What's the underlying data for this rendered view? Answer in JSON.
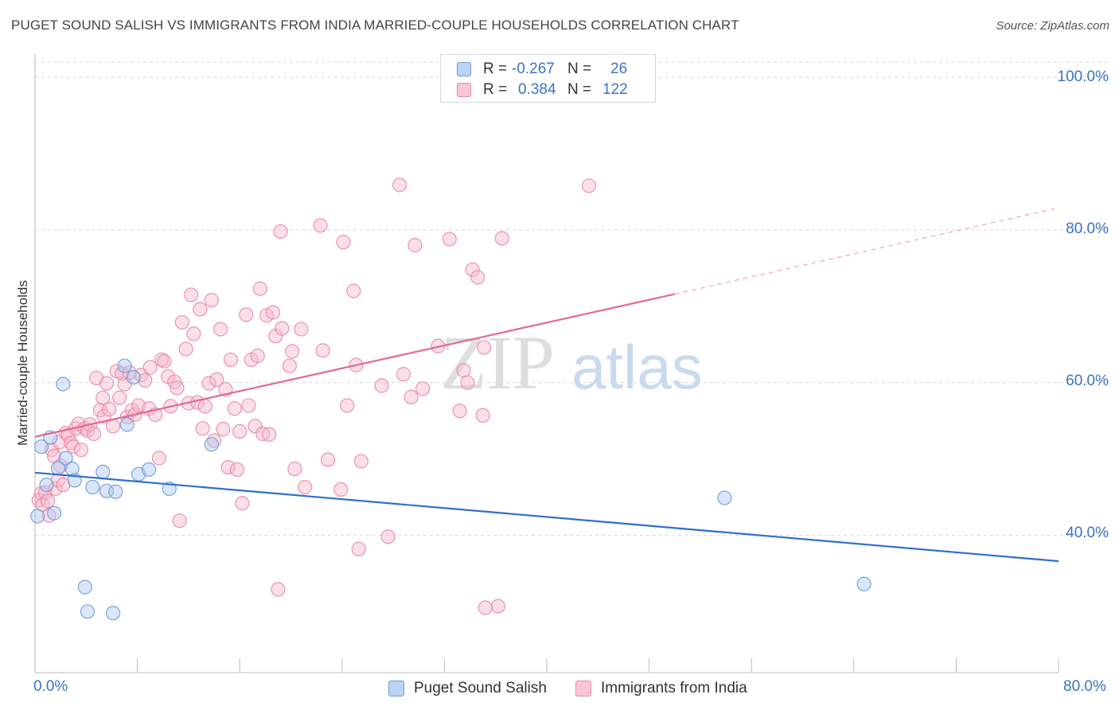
{
  "header": {
    "title": "PUGET SOUND SALISH VS IMMIGRANTS FROM INDIA MARRIED-COUPLE HOUSEHOLDS CORRELATION CHART",
    "source": "Source: ZipAtlas.com"
  },
  "watermark": {
    "zip": "ZIP",
    "atlas": "atlas"
  },
  "legend": {
    "rows": [
      {
        "r_label": "R =",
        "r_value": "-0.267",
        "n_label": "N =",
        "n_value": "26"
      },
      {
        "r_label": "R =",
        "r_value": "0.384",
        "n_label": "N =",
        "n_value": "122"
      }
    ]
  },
  "axes": {
    "xtick_labels": [
      "0.0%",
      "80.0%"
    ],
    "ytick_labels": [
      "100.0%",
      "80.0%",
      "60.0%",
      "40.0%"
    ]
  },
  "colors": {
    "blue_fill": "#aac8ee",
    "blue_stroke": "#6e9bd8",
    "blue_line": "#2e6fcc",
    "pink_fill": "#f5b7c9",
    "pink_stroke": "#e98aa7",
    "pink_line": "#e06a93"
  },
  "chart_data": {
    "type": "scatter",
    "title": "PUGET SOUND SALISH VS IMMIGRANTS FROM INDIA MARRIED-COUPLE HOUSEHOLDS CORRELATION CHART",
    "xlabel": "",
    "ylabel": "Married-couple Households",
    "xlim": [
      0,
      80
    ],
    "ylim": [
      22,
      102
    ],
    "grid": true,
    "legend_placement": "bottom",
    "series": [
      {
        "name": "Puget Sound Salish",
        "r": -0.267,
        "n": 26,
        "trend": {
          "x": [
            0,
            80
          ],
          "y": [
            48.2,
            36.6
          ]
        },
        "points": [
          [
            0.2,
            42.5
          ],
          [
            0.5,
            51.6
          ],
          [
            0.9,
            46.6
          ],
          [
            1.2,
            52.8
          ],
          [
            1.5,
            42.9
          ],
          [
            1.8,
            48.8
          ],
          [
            2.2,
            59.8
          ],
          [
            2.4,
            50.1
          ],
          [
            2.9,
            48.7
          ],
          [
            3.1,
            47.2
          ],
          [
            3.9,
            33.2
          ],
          [
            4.1,
            30.0
          ],
          [
            4.5,
            46.3
          ],
          [
            5.3,
            48.3
          ],
          [
            5.6,
            45.8
          ],
          [
            6.1,
            29.8
          ],
          [
            6.3,
            45.7
          ],
          [
            7.0,
            62.2
          ],
          [
            7.2,
            54.5
          ],
          [
            7.7,
            60.7
          ],
          [
            8.1,
            48.0
          ],
          [
            8.9,
            48.6
          ],
          [
            10.5,
            46.1
          ],
          [
            13.8,
            51.9
          ],
          [
            53.9,
            44.9
          ],
          [
            64.8,
            33.6
          ]
        ]
      },
      {
        "name": "Immigrants from India",
        "r": 0.384,
        "n": 122,
        "trend": {
          "x": [
            0,
            50
          ],
          "y": [
            52.9,
            71.6
          ]
        },
        "trend_extension": {
          "x": [
            50,
            80
          ],
          "y": [
            71.6,
            82.9
          ]
        },
        "points": [
          [
            0.3,
            44.6
          ],
          [
            0.5,
            45.5
          ],
          [
            0.6,
            44.0
          ],
          [
            0.8,
            45.6
          ],
          [
            1.0,
            44.5
          ],
          [
            1.1,
            42.6
          ],
          [
            1.3,
            51.2
          ],
          [
            1.5,
            50.4
          ],
          [
            1.6,
            46.1
          ],
          [
            1.8,
            47.2
          ],
          [
            1.9,
            52.2
          ],
          [
            2.0,
            49.1
          ],
          [
            2.2,
            46.6
          ],
          [
            2.4,
            53.4
          ],
          [
            2.6,
            53.1
          ],
          [
            2.8,
            52.1
          ],
          [
            3.0,
            51.6
          ],
          [
            3.2,
            54.0
          ],
          [
            3.4,
            54.6
          ],
          [
            3.6,
            51.2
          ],
          [
            3.9,
            54.0
          ],
          [
            4.1,
            53.7
          ],
          [
            4.3,
            54.5
          ],
          [
            4.6,
            53.3
          ],
          [
            4.8,
            60.6
          ],
          [
            5.1,
            56.4
          ],
          [
            5.3,
            58.0
          ],
          [
            5.4,
            55.6
          ],
          [
            5.6,
            59.9
          ],
          [
            5.8,
            56.5
          ],
          [
            6.1,
            54.3
          ],
          [
            6.4,
            61.5
          ],
          [
            6.6,
            58.0
          ],
          [
            6.8,
            61.2
          ],
          [
            7.0,
            59.8
          ],
          [
            7.2,
            55.5
          ],
          [
            7.4,
            61.3
          ],
          [
            7.6,
            56.4
          ],
          [
            7.8,
            55.8
          ],
          [
            8.1,
            57.0
          ],
          [
            8.3,
            61.0
          ],
          [
            8.6,
            60.3
          ],
          [
            8.9,
            56.6
          ],
          [
            9.0,
            62.0
          ],
          [
            9.4,
            55.8
          ],
          [
            9.7,
            50.1
          ],
          [
            9.9,
            63.0
          ],
          [
            10.1,
            62.8
          ],
          [
            10.4,
            60.8
          ],
          [
            10.6,
            56.9
          ],
          [
            10.9,
            60.1
          ],
          [
            11.1,
            59.3
          ],
          [
            11.3,
            41.9
          ],
          [
            11.5,
            67.9
          ],
          [
            11.8,
            64.4
          ],
          [
            12.0,
            57.3
          ],
          [
            12.2,
            71.5
          ],
          [
            12.4,
            66.4
          ],
          [
            12.7,
            57.4
          ],
          [
            12.9,
            69.6
          ],
          [
            13.1,
            54.0
          ],
          [
            13.3,
            56.9
          ],
          [
            13.6,
            59.9
          ],
          [
            13.8,
            70.8
          ],
          [
            14.0,
            52.4
          ],
          [
            14.2,
            60.4
          ],
          [
            14.5,
            67.0
          ],
          [
            14.7,
            53.9
          ],
          [
            14.9,
            59.1
          ],
          [
            15.1,
            48.9
          ],
          [
            15.3,
            63.0
          ],
          [
            15.6,
            56.6
          ],
          [
            15.8,
            48.6
          ],
          [
            16.0,
            53.6
          ],
          [
            16.2,
            44.2
          ],
          [
            16.5,
            68.9
          ],
          [
            16.7,
            57.0
          ],
          [
            16.9,
            63.0
          ],
          [
            17.2,
            54.3
          ],
          [
            17.4,
            63.5
          ],
          [
            17.6,
            72.3
          ],
          [
            17.8,
            53.3
          ],
          [
            18.1,
            68.8
          ],
          [
            18.3,
            53.2
          ],
          [
            18.6,
            69.2
          ],
          [
            18.8,
            66.1
          ],
          [
            19.0,
            32.9
          ],
          [
            19.2,
            79.8
          ],
          [
            19.3,
            67.1
          ],
          [
            19.9,
            62.2
          ],
          [
            20.1,
            64.1
          ],
          [
            20.3,
            48.7
          ],
          [
            20.8,
            67.0
          ],
          [
            21.1,
            46.3
          ],
          [
            22.3,
            80.6
          ],
          [
            22.5,
            64.2
          ],
          [
            22.9,
            49.9
          ],
          [
            23.9,
            46.0
          ],
          [
            24.1,
            78.4
          ],
          [
            24.4,
            57.0
          ],
          [
            24.9,
            72.0
          ],
          [
            25.1,
            62.3
          ],
          [
            25.3,
            38.2
          ],
          [
            25.5,
            49.7
          ],
          [
            27.1,
            59.6
          ],
          [
            27.6,
            39.8
          ],
          [
            28.5,
            85.9
          ],
          [
            28.8,
            61.1
          ],
          [
            29.4,
            58.1
          ],
          [
            29.7,
            78.0
          ],
          [
            30.3,
            59.2
          ],
          [
            31.5,
            64.8
          ],
          [
            32.4,
            78.8
          ],
          [
            33.2,
            56.3
          ],
          [
            33.5,
            61.6
          ],
          [
            33.8,
            60.0
          ],
          [
            34.2,
            74.8
          ],
          [
            34.6,
            73.8
          ],
          [
            35.0,
            55.7
          ],
          [
            35.1,
            64.6
          ],
          [
            36.5,
            78.9
          ],
          [
            43.3,
            85.8
          ],
          [
            36.2,
            30.7
          ],
          [
            35.2,
            30.5
          ]
        ]
      }
    ]
  }
}
